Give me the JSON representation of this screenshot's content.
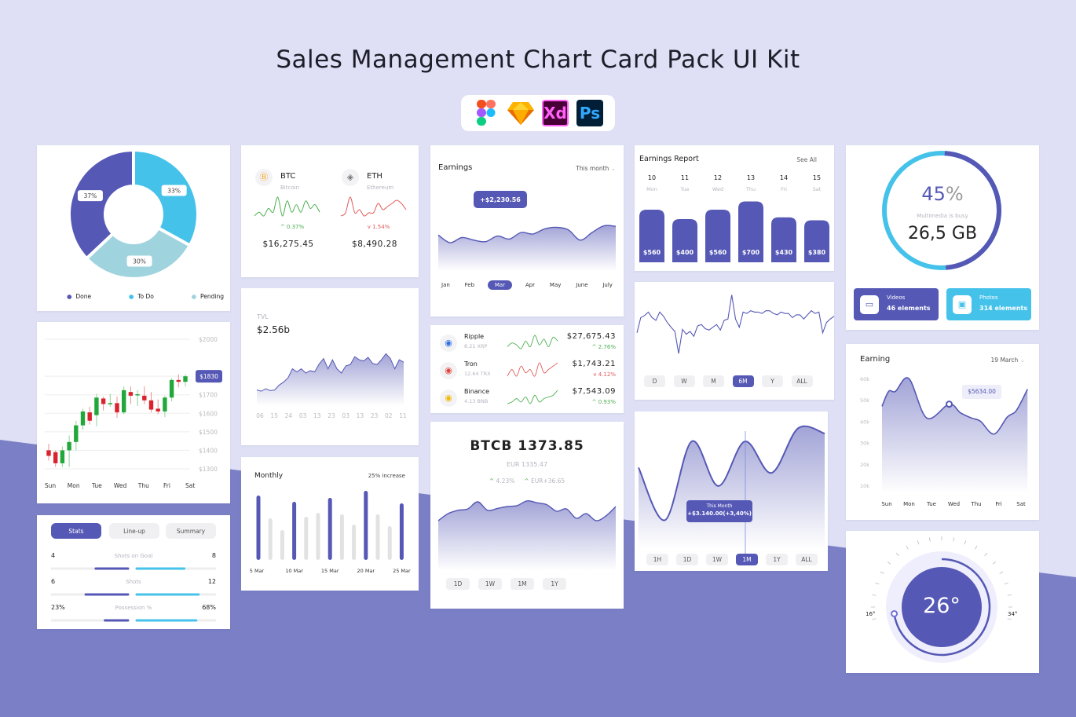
{
  "page": {
    "title": "Sales Management Chart Card Pack UI Kit",
    "tools": [
      {
        "name": "figma-logo"
      },
      {
        "name": "sketch-logo"
      },
      {
        "name": "Xd"
      },
      {
        "name": "Ps"
      }
    ]
  },
  "colors": {
    "primary": "#5558b5",
    "cyan": "#45c2ea",
    "teal": "#9fd4de",
    "green": "#4caf50",
    "red": "#e05a5a",
    "bg_top": "#dfe0f5",
    "bg_bottom": "#7b7fc6"
  },
  "donut": {
    "segments": [
      {
        "label": "To Do",
        "value": 33,
        "text": "33%",
        "color": "#45c2ea"
      },
      {
        "label": "Pending",
        "value": 30,
        "text": "30%",
        "color": "#9fd4de"
      },
      {
        "label": "Done",
        "value": 37,
        "text": "37%",
        "color": "#5558b5"
      }
    ],
    "legend": [
      "Done",
      "To Do",
      "Pending"
    ]
  },
  "coins": [
    {
      "symbol": "BTC",
      "name": "Bitcoin",
      "icon": "bitcoin-icon",
      "change": "0.37%",
      "dir": "up",
      "price": "$16,275.45",
      "spark": [
        3,
        4,
        3,
        5,
        4,
        8,
        3,
        7,
        4,
        6,
        4,
        7,
        5,
        6,
        4
      ]
    },
    {
      "symbol": "ETH",
      "name": "Ethereum",
      "icon": "ethereum-icon",
      "change": "1.54%",
      "dir": "down",
      "price": "$8,490.28",
      "spark": [
        2,
        3,
        8,
        3,
        4,
        2,
        3,
        3,
        6,
        4,
        5,
        6,
        7,
        6,
        4
      ]
    }
  ],
  "tvl": {
    "label": "TVL",
    "value": "$2.56b",
    "ticks": [
      "06",
      "15",
      "24",
      "03",
      "13",
      "23",
      "03",
      "13",
      "23",
      "02",
      "11"
    ],
    "series": [
      20,
      18,
      22,
      19,
      20,
      28,
      33,
      40,
      55,
      50,
      55,
      48,
      52,
      50,
      63,
      72,
      55,
      70,
      55,
      48,
      60,
      62,
      75,
      70,
      68,
      74,
      64,
      62,
      70,
      80,
      72,
      55,
      70,
      66
    ]
  },
  "monthly": {
    "title": "Monthly",
    "note": "25% increase",
    "labels": [
      "5 Mar",
      "10 Mar",
      "15 Mar",
      "20 Mar",
      "25 Mar"
    ],
    "values": [
      82,
      53,
      38,
      74,
      55,
      60,
      79,
      58,
      45,
      88,
      58,
      43,
      72
    ],
    "highlight": [
      0,
      3,
      6,
      9,
      12
    ]
  },
  "candles": {
    "yticks": [
      "$2000",
      "$1800",
      "$1700",
      "$1600",
      "$1500",
      "$1400",
      "$1300"
    ],
    "ylim": [
      1300,
      2000
    ],
    "current": "$1830",
    "days": [
      "Sun",
      "Mon",
      "Tue",
      "Wed",
      "Thu",
      "Fri",
      "Sat"
    ],
    "ohlc": [
      [
        1400,
        1370,
        1435,
        1345
      ],
      [
        1390,
        1330,
        1400,
        1310
      ],
      [
        1330,
        1400,
        1420,
        1310
      ],
      [
        1400,
        1445,
        1480,
        1310
      ],
      [
        1445,
        1535,
        1560,
        1400
      ],
      [
        1535,
        1610,
        1625,
        1510
      ],
      [
        1605,
        1560,
        1635,
        1540
      ],
      [
        1590,
        1685,
        1705,
        1530
      ],
      [
        1680,
        1650,
        1690,
        1615
      ],
      [
        1650,
        1655,
        1705,
        1635
      ],
      [
        1655,
        1605,
        1690,
        1575
      ],
      [
        1605,
        1725,
        1745,
        1595
      ],
      [
        1715,
        1695,
        1745,
        1650
      ],
      [
        1698,
        1703,
        1725,
        1640
      ],
      [
        1695,
        1670,
        1745,
        1650
      ],
      [
        1670,
        1620,
        1715,
        1605
      ],
      [
        1625,
        1610,
        1675,
        1595
      ],
      [
        1610,
        1685,
        1695,
        1580
      ],
      [
        1685,
        1780,
        1790,
        1665
      ],
      [
        1780,
        1770,
        1810,
        1740
      ],
      [
        1770,
        1800,
        1810,
        1745
      ]
    ]
  },
  "stats": {
    "tabs": [
      {
        "label": "Stats",
        "active": true
      },
      {
        "label": "Line-up",
        "active": false
      },
      {
        "label": "Summary",
        "active": false
      }
    ],
    "rows": [
      {
        "label": "Shots on Goal",
        "left": "4",
        "right": "8",
        "left_fill": 0.42,
        "right_fill": 0.6
      },
      {
        "label": "Shots",
        "left": "6",
        "right": "12",
        "left_fill": 0.55,
        "right_fill": 0.78
      },
      {
        "label": "Possession %",
        "left": "23%",
        "right": "68%",
        "left_fill": 0.3,
        "right_fill": 0.75
      }
    ]
  },
  "earnings": {
    "title": "Earnings",
    "period": "This month",
    "tooltip": "+$2,230.56",
    "months": [
      "Jan",
      "Feb",
      "Mar",
      "Apr",
      "May",
      "June",
      "July"
    ],
    "active_month": "Mar",
    "series": [
      55,
      40,
      50,
      45,
      42,
      53,
      47,
      60,
      57,
      67,
      70,
      65,
      45,
      60,
      73,
      72
    ]
  },
  "crypto_list": [
    {
      "name": "Ripple",
      "amount": "8.21 XRP",
      "price": "$27,675.43",
      "change": "2.76%",
      "dir": "up",
      "icon": "ripple-icon",
      "color": "#2f6fe0",
      "spark": [
        2,
        4,
        3,
        1,
        5,
        2,
        8,
        3,
        6,
        2,
        7,
        5
      ]
    },
    {
      "name": "Tron",
      "amount": "12.64 TRX",
      "price": "$1,743.21",
      "change": "4.12%",
      "dir": "down",
      "icon": "tron-icon",
      "color": "#e0473c",
      "spark": [
        2,
        4,
        2,
        5,
        3,
        4,
        2,
        6,
        3,
        4,
        5,
        6
      ]
    },
    {
      "name": "Binance",
      "amount": "4.13 BNB",
      "price": "$7,543.09",
      "change": "0.93%",
      "dir": "up",
      "icon": "binance-icon",
      "color": "#f0b90b",
      "spark": [
        1,
        2,
        4,
        2,
        5,
        1,
        6,
        2,
        4,
        5,
        6,
        9
      ]
    }
  ],
  "btcb": {
    "title": "BTCB 1373.85",
    "sub": "EUR 1335.47",
    "change_pct": "4.23%",
    "change_abs": "EUR+36.65",
    "ranges": [
      "1D",
      "1W",
      "1M",
      "1Y"
    ],
    "series": [
      40,
      55,
      62,
      65,
      80,
      62,
      66,
      70,
      72,
      82,
      78,
      74,
      60,
      65,
      45,
      55,
      40,
      50,
      70
    ]
  },
  "earnings_report": {
    "title": "Earnings Report",
    "see_all": "See All",
    "days": [
      {
        "num": "10",
        "day": "Mon",
        "value": 560,
        "label": "$560"
      },
      {
        "num": "11",
        "day": "Tue",
        "value": 400,
        "label": "$400"
      },
      {
        "num": "12",
        "day": "Wed",
        "value": 560,
        "label": "$560"
      },
      {
        "num": "13",
        "day": "Thu",
        "value": 700,
        "label": "$700"
      },
      {
        "num": "14",
        "day": "Fri",
        "value": 430,
        "label": "$430"
      },
      {
        "num": "15",
        "day": "Sat",
        "value": 380,
        "label": "$380"
      }
    ]
  },
  "line6m": {
    "ranges": [
      "D",
      "W",
      "M",
      "6M",
      "Y",
      "ALL"
    ],
    "active": "6M",
    "series": [
      40,
      62,
      65,
      70,
      62,
      58,
      70,
      64,
      55,
      48,
      42,
      10,
      45,
      38,
      42,
      35,
      50,
      52,
      46,
      44,
      48,
      52,
      44,
      58,
      60,
      95,
      60,
      48,
      70,
      68,
      72,
      70,
      70,
      68,
      72,
      72,
      68,
      66,
      70,
      68,
      68,
      62,
      66,
      66,
      60,
      66,
      72,
      68,
      70,
      40,
      55,
      60,
      64
    ]
  },
  "wave1m": {
    "tooltip_title": "This Month",
    "tooltip_value": "+$3.140.00(+3,40%)",
    "ranges": [
      "1H",
      "1D",
      "1W",
      "1M",
      "1Y",
      "ALL"
    ],
    "active": "1M",
    "series": [
      62,
      22,
      82,
      48,
      82,
      58,
      92,
      88
    ]
  },
  "storage": {
    "percent": 45,
    "percent_text": "45",
    "percent_sign": "%",
    "caption": "Multimedia is busy",
    "size": "26,5 GB",
    "buttons": [
      {
        "label": "Videos",
        "count": "46 elements",
        "icon": "video-camera-icon"
      },
      {
        "label": "Photos",
        "count": "314 elements",
        "icon": "image-icon"
      }
    ]
  },
  "earning_week": {
    "title": "Earning",
    "date": "19 March",
    "yticks": [
      "60k",
      "50k",
      "40k",
      "30k",
      "20k",
      "10k"
    ],
    "ylim": [
      10,
      60
    ],
    "days": [
      "Sun",
      "Mon",
      "Tue",
      "Wed",
      "Thu",
      "Fri",
      "Sat"
    ],
    "points": [
      [
        0,
        47
      ],
      [
        0.3,
        54
      ],
      [
        0.6,
        54
      ],
      [
        1.2,
        60
      ],
      [
        2,
        41.5
      ],
      [
        3,
        48
      ],
      [
        3.5,
        44
      ],
      [
        4,
        41.5
      ],
      [
        4.4,
        40
      ],
      [
        5,
        34
      ],
      [
        5.6,
        42
      ],
      [
        6,
        45
      ],
      [
        6.5,
        55
      ]
    ],
    "tooltip": "$5634.00",
    "marker_x": 3
  },
  "thermostat": {
    "value": "26°",
    "min": "16°",
    "max": "34°",
    "fraction": 0.55
  }
}
